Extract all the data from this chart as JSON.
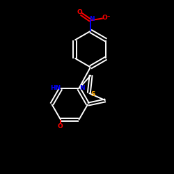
{
  "background": "#000000",
  "bond_color": "#ffffff",
  "bond_lw": 1.4,
  "atom_colors": {
    "N": "#0000ff",
    "O": "#ff0000",
    "S": "#ffaa00",
    "C": "#ffffff"
  },
  "figsize": [
    2.5,
    2.5
  ],
  "dpi": 100,
  "xlim": [
    0,
    10
  ],
  "ylim": [
    0,
    10
  ]
}
